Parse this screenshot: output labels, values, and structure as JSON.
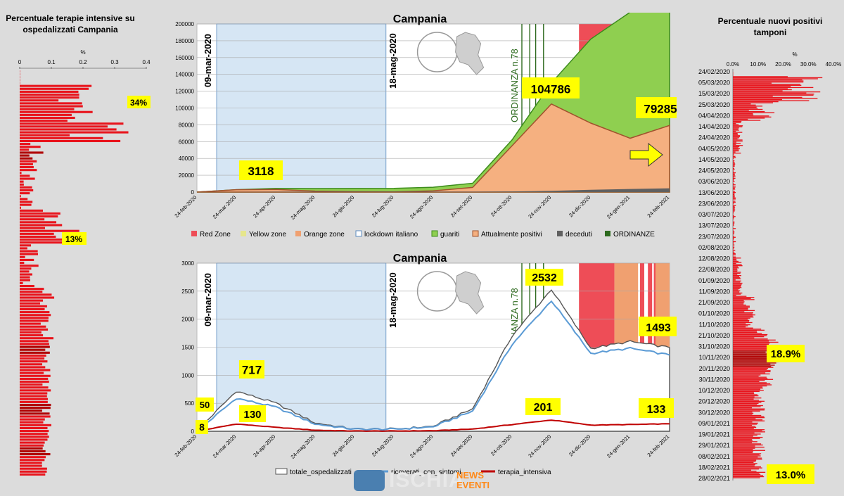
{
  "left_panel": {
    "title": "Percentuale terapie intensive su ospedalizzati Campania",
    "unit": "%",
    "ticks": [
      "0",
      "0.1",
      "0.2",
      "0.3",
      "0.4"
    ],
    "callouts": [
      "34%",
      "13%"
    ],
    "colors": {
      "bar": "#e8141c",
      "dark": "#b00000",
      "callout": "#ffff00"
    }
  },
  "right_panel": {
    "title": "Percentuale nuovi positivi tamponi",
    "unit": "%",
    "ticks": [
      "0.0%",
      "10.0%",
      "20.0%",
      "30.0%",
      "40.0%"
    ],
    "dates": [
      "24/02/2020",
      "05/03/2020",
      "15/03/2020",
      "25/03/2020",
      "04/04/2020",
      "14/04/2020",
      "24/04/2020",
      "04/05/2020",
      "14/05/2020",
      "24/05/2020",
      "03/06/2020",
      "13/06/2020",
      "23/06/2020",
      "03/07/2020",
      "13/07/2020",
      "23/07/2020",
      "02/08/2020",
      "12/08/2020",
      "22/08/2020",
      "01/09/2020",
      "11/09/2020",
      "21/09/2020",
      "01/10/2020",
      "11/10/2020",
      "21/10/2020",
      "31/10/2020",
      "10/11/2020",
      "20/11/2020",
      "30/11/2020",
      "10/12/2020",
      "20/12/2020",
      "30/12/2020",
      "09/01/2021",
      "19/01/2021",
      "29/01/2021",
      "08/02/2021",
      "18/02/2021",
      "28/02/2021"
    ],
    "callouts": [
      "18.9%",
      "13.0%"
    ]
  },
  "top_chart": {
    "title": "Campania",
    "y_ticks": [
      "0",
      "20000",
      "40000",
      "60000",
      "80000",
      "100000",
      "120000",
      "140000",
      "160000",
      "180000",
      "200000"
    ],
    "x_ticks": [
      "24-feb-2020",
      "24-mar-2020",
      "24-apr-2020",
      "24-mag-2020",
      "24-giu-2020",
      "24-lug-2020",
      "24-ago-2020",
      "24-set-2020",
      "24-ott-2020",
      "24-nov-2020",
      "24-dic-2020",
      "24-gen-2021",
      "24-feb-2021"
    ],
    "vlabels": [
      "09-mar-2020",
      "18-mag-2020",
      "ORDINANZA n.78"
    ],
    "callouts": [
      "3118",
      "104786",
      "79285"
    ],
    "legend": [
      "Red Zone",
      "Yellow zone",
      "Orange zone",
      "lockdown italiano",
      "guariti",
      "Attualmente positivi",
      "deceduti",
      "ORDINANZE"
    ]
  },
  "bottom_chart": {
    "title": "Campania",
    "y_ticks": [
      "0",
      "500",
      "1000",
      "1500",
      "2000",
      "2500",
      "3000"
    ],
    "x_ticks": [
      "24-feb-2020",
      "24-mar-2020",
      "24-apr-2020",
      "24-mag-2020",
      "24-giu-2020",
      "24-lug-2020",
      "24-ago-2020",
      "24-set-2020",
      "24-ott-2020",
      "24-nov-2020",
      "24-dic-2020",
      "24-gen-2021",
      "24-feb-2021"
    ],
    "vlabels": [
      "09-mar-2020",
      "18-mag-2020",
      "ORDINANZA n.78"
    ],
    "callouts": [
      "717",
      "50",
      "130",
      "8",
      "2532",
      "201",
      "1493",
      "133"
    ],
    "legend": [
      "totale_ospedalizzati",
      "ricoverati_con_sintomi",
      "terapia_intensiva"
    ]
  },
  "logo": {
    "word": "ISCHIA",
    "sub1": "NEWS",
    "sub2": "EVENTI"
  },
  "colors": {
    "red_zone": "#ee4d57",
    "yellow_zone": "#e6e68c",
    "orange_zone": "#f0a070",
    "lockdown": "#d6e6f4",
    "guariti": "#8fcf50",
    "guariti_line": "#3c8c1c",
    "positivi": "#f5b080",
    "positivi_line": "#a0522d",
    "deceduti": "#606060",
    "ordinanze": "#2d6a1e",
    "callout": "#ffff00",
    "ricoverati": "#5b9bd5",
    "terapia": "#c00000"
  },
  "chart_data": [
    {
      "type": "area",
      "title": "Campania",
      "x": [
        "24-feb-2020",
        "24-mar-2020",
        "24-apr-2020",
        "24-mag-2020",
        "24-giu-2020",
        "24-lug-2020",
        "24-ago-2020",
        "24-set-2020",
        "24-ott-2020",
        "24-nov-2020",
        "24-dic-2020",
        "24-gen-2021",
        "24-feb-2021"
      ],
      "series": [
        {
          "name": "Attualmente positivi",
          "values": [
            0,
            2800,
            3118,
            1200,
            500,
            350,
            1500,
            5500,
            55000,
            104786,
            82000,
            64000,
            79285
          ]
        },
        {
          "name": "guariti",
          "values": [
            0,
            50,
            1200,
            3000,
            3800,
            4000,
            4300,
            5000,
            7000,
            25000,
            100000,
            150000,
            187000
          ]
        },
        {
          "name": "deceduti",
          "values": [
            0,
            100,
            380,
            420,
            430,
            440,
            450,
            470,
            700,
            1500,
            2700,
            3700,
            4500
          ]
        }
      ],
      "ylim": [
        0,
        200000
      ]
    },
    {
      "type": "line",
      "title": "Campania",
      "x": [
        "24-feb-2020",
        "24-mar-2020",
        "24-apr-2020",
        "24-mag-2020",
        "24-giu-2020",
        "24-lug-2020",
        "24-ago-2020",
        "24-set-2020",
        "24-ott-2020",
        "24-nov-2020",
        "24-dic-2020",
        "24-gen-2021",
        "24-feb-2021"
      ],
      "series": [
        {
          "name": "totale_ospedalizzati",
          "values": [
            8,
            717,
            500,
            150,
            40,
            40,
            90,
            400,
            1700,
            2532,
            1480,
            1600,
            1493
          ]
        },
        {
          "name": "ricoverati_con_sintomi",
          "values": [
            0,
            590,
            430,
            130,
            35,
            35,
            80,
            360,
            1550,
            2330,
            1390,
            1480,
            1360
          ]
        },
        {
          "name": "terapia_intensiva",
          "values": [
            0,
            130,
            70,
            20,
            5,
            5,
            10,
            40,
            120,
            201,
            110,
            120,
            133
          ]
        }
      ],
      "ylim": [
        0,
        3000
      ]
    }
  ]
}
